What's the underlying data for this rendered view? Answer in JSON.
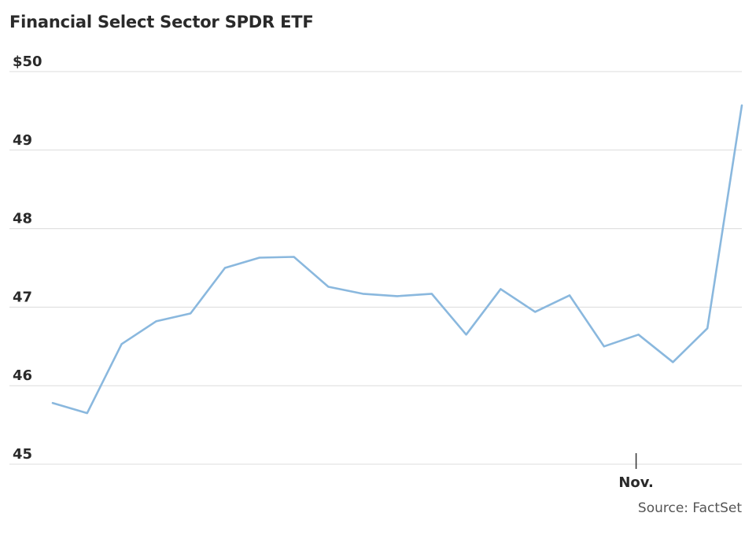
{
  "chart_data": {
    "type": "line",
    "title": "Financial Select Sector SPDR ETF",
    "source": "Source: FactSet",
    "xlabel": "",
    "ylabel": "",
    "ylim": [
      45,
      50
    ],
    "yticks": [
      45,
      46,
      47,
      48,
      49,
      50
    ],
    "ytick_labels": [
      "45",
      "46",
      "47",
      "48",
      "49",
      "$50"
    ],
    "xtick": {
      "label": "Nov.",
      "index": 17
    },
    "grid": true,
    "color": "#8ab8de",
    "series": [
      {
        "values": [
          45.78,
          45.65,
          46.53,
          46.82,
          46.92,
          47.5,
          47.63,
          47.64,
          47.26,
          47.17,
          47.14,
          47.17,
          46.65,
          47.23,
          46.94,
          47.15,
          46.5,
          46.65,
          46.3,
          46.73,
          49.57
        ]
      }
    ]
  }
}
